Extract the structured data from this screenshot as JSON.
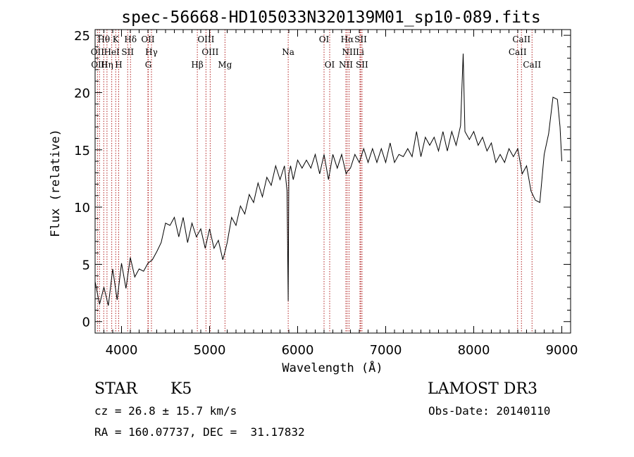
{
  "colors": {
    "axis": "#000000",
    "spectrum": "#000000",
    "line_marker": "#b22222"
  },
  "chart_data": {
    "type": "line",
    "title": "spec-56668-HD105033N320139M01_sp10-089.fits",
    "xlabel": "Wavelength (Å)",
    "ylabel": "Flux (relative)",
    "xlim": [
      3700,
      9100
    ],
    "ylim": [
      -1,
      25.5
    ],
    "xticks": [
      4000,
      5000,
      6000,
      7000,
      8000,
      9000
    ],
    "yticks": [
      0,
      5,
      10,
      15,
      20,
      25
    ],
    "series": [
      {
        "name": "spectrum",
        "x": [
          3700,
          3750,
          3800,
          3850,
          3900,
          3950,
          4000,
          4050,
          4100,
          4150,
          4200,
          4250,
          4300,
          4350,
          4400,
          4450,
          4500,
          4550,
          4600,
          4650,
          4700,
          4750,
          4800,
          4850,
          4900,
          4950,
          5000,
          5050,
          5100,
          5150,
          5175,
          5200,
          5250,
          5300,
          5350,
          5400,
          5450,
          5500,
          5550,
          5600,
          5650,
          5700,
          5750,
          5800,
          5850,
          5880,
          5893,
          5900,
          5920,
          5950,
          6000,
          6050,
          6100,
          6150,
          6200,
          6250,
          6300,
          6350,
          6400,
          6450,
          6500,
          6550,
          6563,
          6600,
          6650,
          6700,
          6750,
          6800,
          6850,
          6900,
          6950,
          7000,
          7050,
          7100,
          7150,
          7200,
          7250,
          7300,
          7350,
          7400,
          7450,
          7500,
          7550,
          7600,
          7650,
          7700,
          7750,
          7800,
          7850,
          7880,
          7900,
          7950,
          8000,
          8050,
          8100,
          8150,
          8200,
          8250,
          8300,
          8350,
          8400,
          8450,
          8500,
          8550,
          8600,
          8650,
          8700,
          8750,
          8800,
          8850,
          8900,
          8950,
          8980,
          9000
        ],
        "y": [
          3.5,
          1.5,
          3.0,
          2.0,
          4.0,
          2.5,
          4.5,
          3.5,
          5.0,
          4.5,
          4.0,
          5.0,
          4.5,
          6.0,
          5.5,
          7.5,
          8.0,
          9.0,
          8.5,
          8.0,
          8.5,
          7.5,
          8.0,
          8.0,
          7.5,
          7.0,
          7.5,
          7.0,
          6.5,
          6.0,
          5.5,
          7.5,
          8.5,
          9.0,
          9.5,
          10.0,
          10.5,
          11.0,
          11.5,
          11.5,
          12.0,
          12.5,
          13.0,
          13.0,
          13.0,
          12.0,
          1.2,
          13.5,
          13.0,
          13.0,
          13.5,
          14.0,
          13.5,
          14.0,
          14.0,
          13.5,
          14.0,
          13.0,
          14.0,
          14.0,
          14.0,
          13.5,
          12.5,
          14.0,
          14.0,
          14.5,
          14.5,
          14.5,
          14.5,
          14.5,
          14.5,
          14.5,
          15.0,
          14.5,
          14.0,
          15.0,
          14.5,
          15.0,
          16.0,
          15.0,
          15.5,
          16.0,
          15.5,
          15.5,
          16.0,
          15.5,
          16.0,
          16.0,
          16.5,
          24.0,
          16.0,
          16.5,
          16.0,
          16.0,
          15.5,
          15.5,
          15.0,
          14.5,
          14.0,
          14.5,
          14.5,
          15.0,
          14.5,
          13.5,
          13.0,
          12.0,
          10.0,
          11.0,
          14.0,
          17.0,
          19.0,
          20.0,
          17.0,
          14.0
        ]
      }
    ],
    "line_marks": [
      {
        "label": "Hθ",
        "x": 3798,
        "row": 0
      },
      {
        "label": "K",
        "x": 3934,
        "row": 0
      },
      {
        "label": "Hδ",
        "x": 4102,
        "row": 0
      },
      {
        "label": "OII",
        "x": 4300,
        "row": 0
      },
      {
        "label": "OIII",
        "x": 4959,
        "row": 0
      },
      {
        "label": "OI",
        "x": 6300,
        "row": 0
      },
      {
        "label": "Hα",
        "x": 6563,
        "row": 0
      },
      {
        "label": "SII",
        "x": 6716,
        "row": 0
      },
      {
        "label": "CaII",
        "x": 8542,
        "row": 0
      },
      {
        "label": "OII",
        "x": 3727,
        "row": 1
      },
      {
        "label": "HeI",
        "x": 3889,
        "row": 1
      },
      {
        "label": "SII",
        "x": 4070,
        "row": 1
      },
      {
        "label": "Hγ",
        "x": 4340,
        "row": 1
      },
      {
        "label": "OIII",
        "x": 5007,
        "row": 1
      },
      {
        "label": "Na",
        "x": 5893,
        "row": 1
      },
      {
        "label": "NII",
        "x": 6584,
        "row": 1
      },
      {
        "label": "Li",
        "x": 6708,
        "row": 1
      },
      {
        "label": "CaII",
        "x": 8498,
        "row": 1
      },
      {
        "label": "OIII",
        "x": 3750,
        "row": 2
      },
      {
        "label": "Hη",
        "x": 3835,
        "row": 2
      },
      {
        "label": "H",
        "x": 3968,
        "row": 2
      },
      {
        "label": "G",
        "x": 4304,
        "row": 2
      },
      {
        "label": "Hβ",
        "x": 4861,
        "row": 2
      },
      {
        "label": "Mg",
        "x": 5175,
        "row": 2
      },
      {
        "label": "OI",
        "x": 6364,
        "row": 2
      },
      {
        "label": "NII",
        "x": 6548,
        "row": 2
      },
      {
        "label": "SII",
        "x": 6731,
        "row": 2
      },
      {
        "label": "CaII",
        "x": 8662,
        "row": 2
      }
    ]
  },
  "info": {
    "object_class": "STAR",
    "subclass": "K5",
    "redshift": "cz = 26.8 ± 15.7 km/s",
    "coords": "RA = 160.07737, DEC =  31.17832",
    "survey": "LAMOST DR3",
    "obs_date": "Obs-Date: 20140110"
  }
}
